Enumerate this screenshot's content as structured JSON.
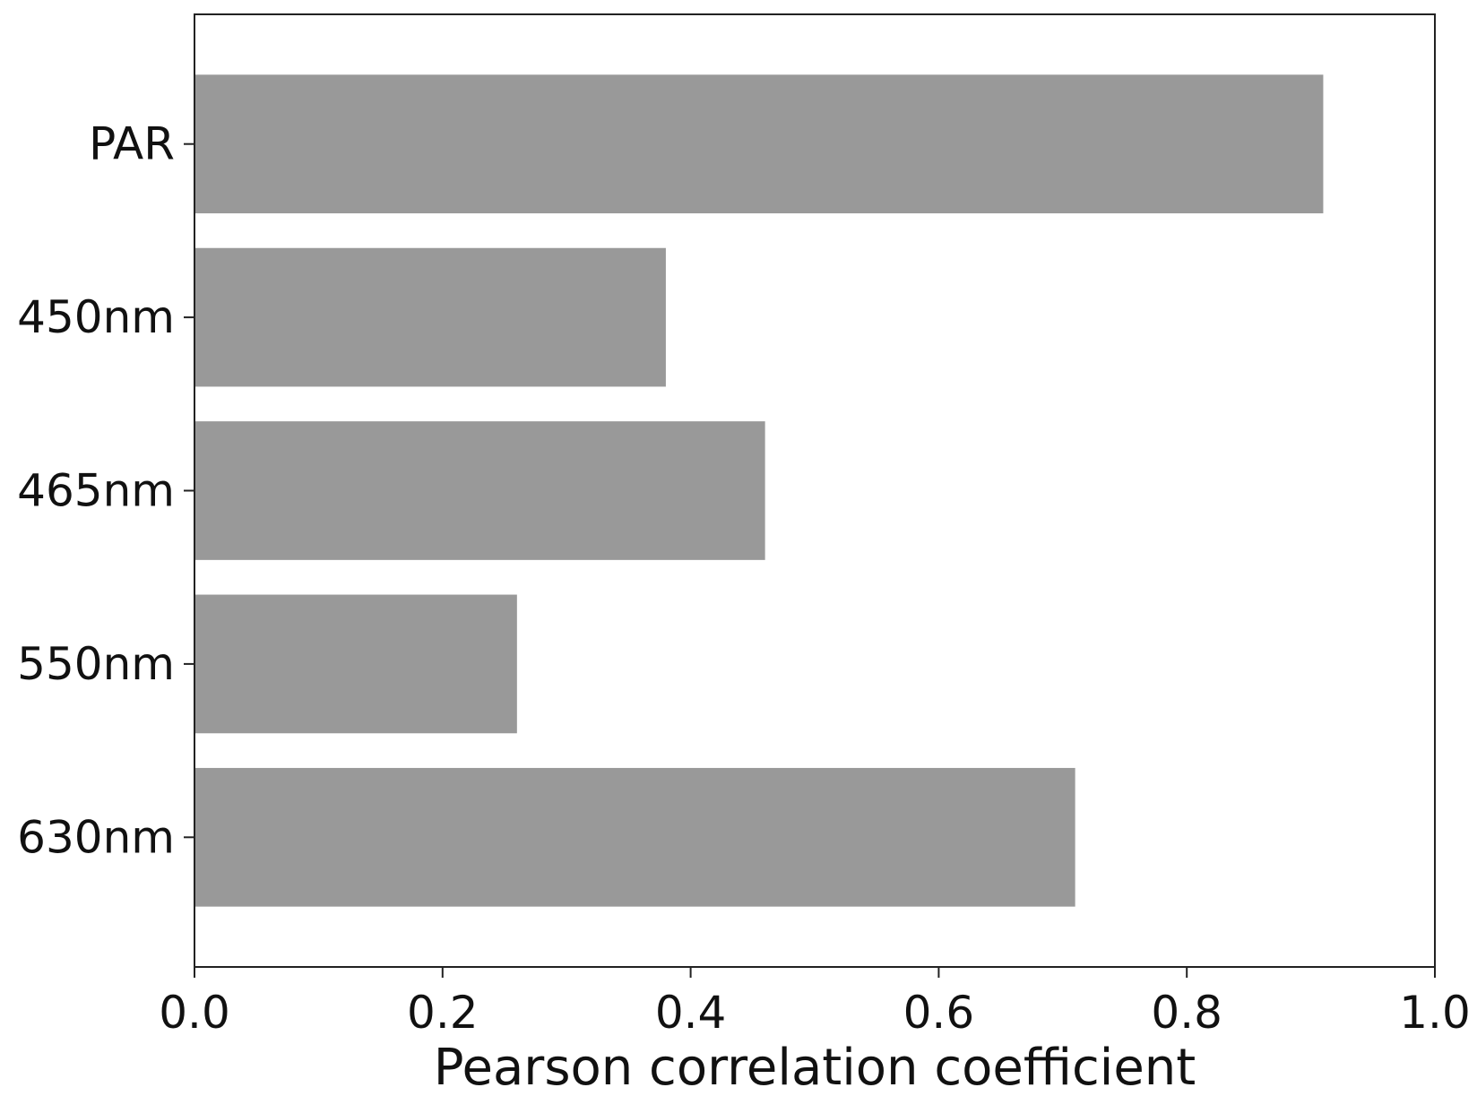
{
  "chart_data": {
    "type": "bar",
    "orientation": "horizontal",
    "categories": [
      "PAR",
      "450nm",
      "465nm",
      "550nm",
      "630nm"
    ],
    "values": [
      0.91,
      0.38,
      0.46,
      0.26,
      0.71
    ],
    "xlabel": "Pearson correlation coefficient",
    "ylabel": "",
    "xlim": [
      0.0,
      1.0
    ],
    "xticks": [
      "0.0",
      "0.2",
      "0.4",
      "0.6",
      "0.8",
      "1.0"
    ],
    "grid": false,
    "bar_color": "#999999"
  }
}
